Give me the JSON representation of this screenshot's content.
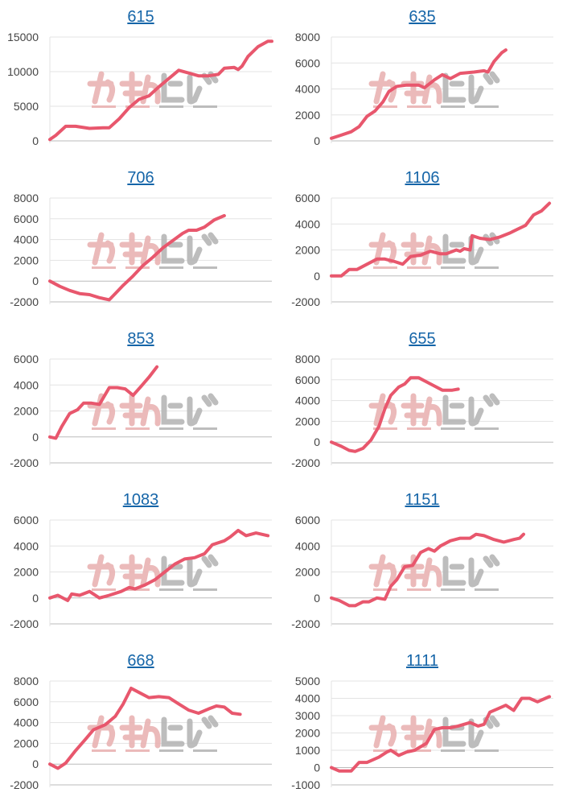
{
  "style": {
    "line_color": "#e8576d",
    "grid_color": "#e3e3e3",
    "axis_color": "#bbbbbb",
    "title_color": "#1565a8",
    "watermark_pink": "#e9b3b3",
    "watermark_gray": "#b6b6b6"
  },
  "watermark_icon": "min-repo-logo",
  "chart_data": [
    {
      "type": "line",
      "title": "615",
      "ylim": [
        0,
        15000
      ],
      "yticks": [
        0,
        5000,
        10000,
        15000
      ],
      "series": [
        {
          "values": [
            [
              0,
              200
            ],
            [
              0.03,
              800
            ],
            [
              0.08,
              2100
            ],
            [
              0.13,
              2100
            ],
            [
              0.2,
              1800
            ],
            [
              0.27,
              1900
            ],
            [
              0.3,
              1900
            ],
            [
              0.35,
              3200
            ],
            [
              0.4,
              4800
            ],
            [
              0.45,
              6000
            ],
            [
              0.5,
              6500
            ],
            [
              0.55,
              7800
            ],
            [
              0.6,
              9000
            ],
            [
              0.65,
              10200
            ],
            [
              0.7,
              9800
            ],
            [
              0.75,
              9400
            ],
            [
              0.8,
              9400
            ],
            [
              0.85,
              9600
            ],
            [
              0.88,
              10500
            ],
            [
              0.93,
              10600
            ],
            [
              0.95,
              10300
            ],
            [
              0.97,
              10800
            ],
            [
              1.0,
              12200
            ],
            [
              1.05,
              13600
            ],
            [
              1.1,
              14400
            ],
            [
              1.12,
              14400
            ]
          ]
        }
      ]
    },
    {
      "type": "line",
      "title": "635",
      "ylim": [
        0,
        8000
      ],
      "yticks": [
        0,
        2000,
        4000,
        6000,
        8000
      ],
      "series": [
        {
          "values": [
            [
              0,
              200
            ],
            [
              0.04,
              400
            ],
            [
              0.1,
              700
            ],
            [
              0.14,
              1100
            ],
            [
              0.18,
              1900
            ],
            [
              0.22,
              2300
            ],
            [
              0.26,
              3000
            ],
            [
              0.29,
              3800
            ],
            [
              0.33,
              4200
            ],
            [
              0.38,
              4300
            ],
            [
              0.44,
              4300
            ],
            [
              0.47,
              4100
            ],
            [
              0.52,
              4700
            ],
            [
              0.56,
              5100
            ],
            [
              0.6,
              4800
            ],
            [
              0.65,
              5200
            ],
            [
              0.72,
              5300
            ],
            [
              0.77,
              5400
            ],
            [
              0.79,
              5300
            ],
            [
              0.82,
              6100
            ],
            [
              0.86,
              6800
            ],
            [
              0.88,
              7000
            ]
          ]
        }
      ]
    },
    {
      "type": "line",
      "title": "706",
      "ylim": [
        -2000,
        8000
      ],
      "yticks": [
        -2000,
        0,
        2000,
        4000,
        6000,
        8000
      ],
      "series": [
        {
          "values": [
            [
              0,
              0
            ],
            [
              0.05,
              -500
            ],
            [
              0.1,
              -900
            ],
            [
              0.15,
              -1200
            ],
            [
              0.2,
              -1300
            ],
            [
              0.25,
              -1600
            ],
            [
              0.3,
              -1800
            ],
            [
              0.33,
              -1200
            ],
            [
              0.37,
              -400
            ],
            [
              0.42,
              500
            ],
            [
              0.47,
              1500
            ],
            [
              0.52,
              2300
            ],
            [
              0.57,
              3200
            ],
            [
              0.62,
              3900
            ],
            [
              0.67,
              4600
            ],
            [
              0.7,
              4900
            ],
            [
              0.74,
              4900
            ],
            [
              0.78,
              5200
            ],
            [
              0.83,
              5900
            ],
            [
              0.88,
              6300
            ]
          ]
        }
      ]
    },
    {
      "type": "line",
      "title": "1106",
      "ylim": [
        -2000,
        6000
      ],
      "yticks": [
        -2000,
        0,
        2000,
        4000,
        6000
      ],
      "series": [
        {
          "values": [
            [
              0,
              0
            ],
            [
              0.05,
              0
            ],
            [
              0.09,
              500
            ],
            [
              0.13,
              500
            ],
            [
              0.18,
              900
            ],
            [
              0.23,
              1300
            ],
            [
              0.27,
              1300
            ],
            [
              0.32,
              1100
            ],
            [
              0.36,
              900
            ],
            [
              0.4,
              1500
            ],
            [
              0.45,
              1600
            ],
            [
              0.5,
              1900
            ],
            [
              0.55,
              1700
            ],
            [
              0.58,
              1700
            ],
            [
              0.63,
              2000
            ],
            [
              0.65,
              1900
            ],
            [
              0.67,
              2100
            ],
            [
              0.7,
              2000
            ],
            [
              0.71,
              3100
            ],
            [
              0.75,
              2900
            ],
            [
              0.8,
              2800
            ],
            [
              0.85,
              3000
            ],
            [
              0.9,
              3300
            ],
            [
              0.94,
              3600
            ],
            [
              0.98,
              3900
            ],
            [
              1.02,
              4700
            ],
            [
              1.06,
              5000
            ],
            [
              1.1,
              5600
            ]
          ]
        }
      ]
    },
    {
      "type": "line",
      "title": "853",
      "ylim": [
        -2000,
        6000
      ],
      "yticks": [
        -2000,
        0,
        2000,
        4000,
        6000
      ],
      "series": [
        {
          "values": [
            [
              0,
              0
            ],
            [
              0.03,
              -100
            ],
            [
              0.06,
              800
            ],
            [
              0.1,
              1800
            ],
            [
              0.14,
              2100
            ],
            [
              0.17,
              2600
            ],
            [
              0.21,
              2600
            ],
            [
              0.25,
              2500
            ],
            [
              0.3,
              3800
            ],
            [
              0.34,
              3800
            ],
            [
              0.38,
              3700
            ],
            [
              0.42,
              3200
            ],
            [
              0.46,
              3900
            ],
            [
              0.5,
              4600
            ],
            [
              0.54,
              5400
            ]
          ]
        }
      ]
    },
    {
      "type": "line",
      "title": "655",
      "ylim": [
        -2000,
        8000
      ],
      "yticks": [
        -2000,
        0,
        2000,
        4000,
        6000,
        8000
      ],
      "series": [
        {
          "values": [
            [
              0,
              0
            ],
            [
              0.05,
              -400
            ],
            [
              0.09,
              -800
            ],
            [
              0.12,
              -900
            ],
            [
              0.16,
              -600
            ],
            [
              0.2,
              200
            ],
            [
              0.24,
              1500
            ],
            [
              0.27,
              3200
            ],
            [
              0.3,
              4500
            ],
            [
              0.34,
              5300
            ],
            [
              0.37,
              5600
            ],
            [
              0.4,
              6200
            ],
            [
              0.44,
              6200
            ],
            [
              0.48,
              5800
            ],
            [
              0.52,
              5400
            ],
            [
              0.56,
              5000
            ],
            [
              0.61,
              5000
            ],
            [
              0.64,
              5100
            ]
          ]
        }
      ]
    },
    {
      "type": "line",
      "title": "1083",
      "ylim": [
        -2000,
        6000
      ],
      "yticks": [
        -2000,
        0,
        2000,
        4000,
        6000
      ],
      "series": [
        {
          "values": [
            [
              0,
              0
            ],
            [
              0.04,
              200
            ],
            [
              0.09,
              -200
            ],
            [
              0.11,
              300
            ],
            [
              0.15,
              200
            ],
            [
              0.2,
              500
            ],
            [
              0.25,
              0
            ],
            [
              0.3,
              200
            ],
            [
              0.36,
              500
            ],
            [
              0.4,
              800
            ],
            [
              0.43,
              700
            ],
            [
              0.48,
              1000
            ],
            [
              0.53,
              1400
            ],
            [
              0.58,
              2000
            ],
            [
              0.63,
              2600
            ],
            [
              0.68,
              3000
            ],
            [
              0.73,
              3100
            ],
            [
              0.78,
              3400
            ],
            [
              0.82,
              4100
            ],
            [
              0.88,
              4400
            ],
            [
              0.91,
              4700
            ],
            [
              0.95,
              5200
            ],
            [
              0.99,
              4800
            ],
            [
              1.04,
              5000
            ],
            [
              1.1,
              4800
            ]
          ]
        }
      ]
    },
    {
      "type": "line",
      "title": "1151",
      "ylim": [
        -2000,
        6000
      ],
      "yticks": [
        -2000,
        0,
        2000,
        4000,
        6000
      ],
      "series": [
        {
          "values": [
            [
              0,
              0
            ],
            [
              0.04,
              -200
            ],
            [
              0.09,
              -600
            ],
            [
              0.12,
              -600
            ],
            [
              0.16,
              -300
            ],
            [
              0.19,
              -300
            ],
            [
              0.23,
              0
            ],
            [
              0.27,
              -100
            ],
            [
              0.3,
              900
            ],
            [
              0.33,
              1400
            ],
            [
              0.37,
              2400
            ],
            [
              0.41,
              2500
            ],
            [
              0.45,
              3500
            ],
            [
              0.49,
              3800
            ],
            [
              0.52,
              3600
            ],
            [
              0.55,
              4000
            ],
            [
              0.6,
              4400
            ],
            [
              0.65,
              4600
            ],
            [
              0.7,
              4600
            ],
            [
              0.73,
              4900
            ],
            [
              0.77,
              4800
            ],
            [
              0.82,
              4500
            ],
            [
              0.87,
              4300
            ],
            [
              0.92,
              4500
            ],
            [
              0.95,
              4600
            ],
            [
              0.97,
              4900
            ]
          ]
        }
      ]
    },
    {
      "type": "line",
      "title": "668",
      "ylim": [
        -2000,
        8000
      ],
      "yticks": [
        -2000,
        0,
        2000,
        4000,
        6000,
        8000
      ],
      "series": [
        {
          "values": [
            [
              0,
              0
            ],
            [
              0.04,
              -400
            ],
            [
              0.08,
              100
            ],
            [
              0.13,
              1300
            ],
            [
              0.18,
              2400
            ],
            [
              0.22,
              3300
            ],
            [
              0.28,
              3800
            ],
            [
              0.33,
              4600
            ],
            [
              0.37,
              5800
            ],
            [
              0.41,
              7300
            ],
            [
              0.45,
              6900
            ],
            [
              0.5,
              6400
            ],
            [
              0.55,
              6500
            ],
            [
              0.6,
              6400
            ],
            [
              0.65,
              5800
            ],
            [
              0.7,
              5200
            ],
            [
              0.75,
              4900
            ],
            [
              0.8,
              5300
            ],
            [
              0.84,
              5600
            ],
            [
              0.88,
              5500
            ],
            [
              0.92,
              4900
            ],
            [
              0.96,
              4800
            ]
          ]
        }
      ]
    },
    {
      "type": "line",
      "title": "1111",
      "ylim": [
        -1000,
        5000
      ],
      "yticks": [
        -1000,
        0,
        1000,
        2000,
        3000,
        4000,
        5000
      ],
      "series": [
        {
          "values": [
            [
              0,
              0
            ],
            [
              0.04,
              -200
            ],
            [
              0.1,
              -200
            ],
            [
              0.14,
              300
            ],
            [
              0.18,
              300
            ],
            [
              0.24,
              600
            ],
            [
              0.28,
              900
            ],
            [
              0.3,
              1000
            ],
            [
              0.34,
              700
            ],
            [
              0.38,
              900
            ],
            [
              0.42,
              1000
            ],
            [
              0.48,
              1400
            ],
            [
              0.52,
              2200
            ],
            [
              0.56,
              2300
            ],
            [
              0.6,
              2300
            ],
            [
              0.64,
              2400
            ],
            [
              0.7,
              2600
            ],
            [
              0.74,
              2400
            ],
            [
              0.77,
              2500
            ],
            [
              0.8,
              3200
            ],
            [
              0.84,
              3400
            ],
            [
              0.88,
              3600
            ],
            [
              0.92,
              3300
            ],
            [
              0.96,
              4000
            ],
            [
              1.0,
              4000
            ],
            [
              1.04,
              3800
            ],
            [
              1.08,
              4000
            ],
            [
              1.1,
              4100
            ]
          ]
        }
      ]
    }
  ]
}
